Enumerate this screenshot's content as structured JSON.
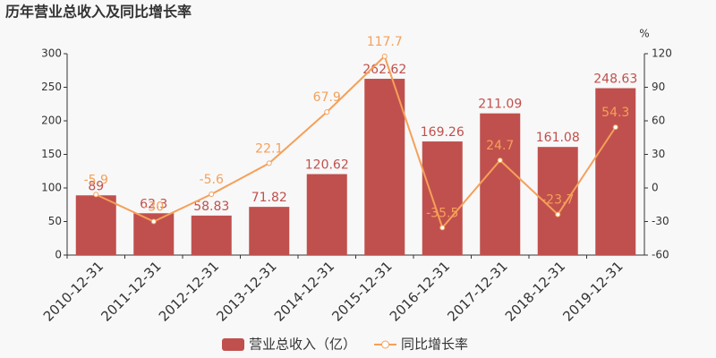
{
  "chart_data": {
    "type": "bar",
    "title": "历年营业总收入及同比增长率",
    "categories": [
      "2010-12-31",
      "2011-12-31",
      "2012-12-31",
      "2013-12-31",
      "2014-12-31",
      "2015-12-31",
      "2016-12-31",
      "2017-12-31",
      "2018-12-31",
      "2019-12-31"
    ],
    "series": [
      {
        "name": "营业总收入（亿）",
        "color": "#c0504d",
        "type": "bar",
        "values": [
          89,
          62.3,
          58.83,
          71.82,
          120.62,
          262.62,
          169.26,
          211.09,
          161.08,
          248.63
        ]
      },
      {
        "name": "同比增长率",
        "color": "#f5a05a",
        "type": "line",
        "axis": "y2",
        "values": [
          -5.9,
          -30,
          -5.6,
          22.1,
          67.9,
          117.7,
          -35.5,
          24.7,
          -23.7,
          54.3
        ]
      }
    ],
    "ylim": [
      0,
      300
    ],
    "yticks": [
      0,
      50,
      100,
      150,
      200,
      250,
      300
    ],
    "y2lim": [
      -60,
      120
    ],
    "y2ticks": [
      -60,
      -30,
      0,
      30,
      60,
      90,
      120
    ],
    "y2_label": "%"
  }
}
